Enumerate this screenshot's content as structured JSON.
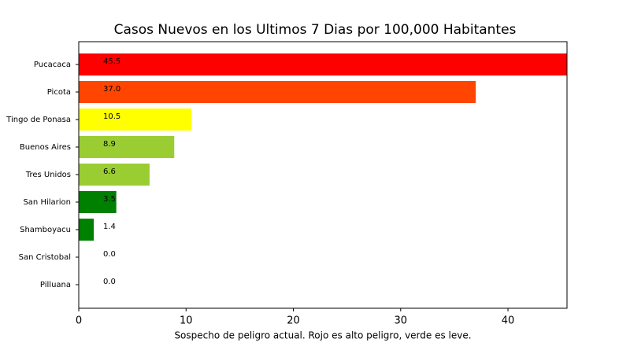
{
  "chart_data": {
    "type": "barh",
    "title": "Casos Nuevos en los Ultimos 7 Dias por 100,000 Habitantes",
    "xlabel": "Sospecho de peligro actual. Rojo es alto peligro, verde es leve.",
    "categories": [
      "Pucacaca",
      "Picota",
      "Tingo de Ponasa",
      "Buenos Aires",
      "Tres Unidos",
      "San Hilarion",
      "Shamboyacu",
      "San Cristobal",
      "Pilluana"
    ],
    "values": [
      45.5,
      37.0,
      10.5,
      8.9,
      6.6,
      3.5,
      1.4,
      0.0,
      0.0
    ],
    "value_labels": [
      "45.5",
      "37.0",
      "10.5",
      "8.9",
      "6.6",
      "3.5",
      "1.4",
      "0.0",
      "0.0"
    ],
    "colors": [
      "#ff0000",
      "#ff4500",
      "#ffff00",
      "#9acd32",
      "#9acd32",
      "#008000",
      "#008000",
      "#008000",
      "#008000"
    ],
    "xlim": [
      0,
      45.5
    ],
    "xticks": [
      0,
      10,
      20,
      30,
      40
    ]
  }
}
